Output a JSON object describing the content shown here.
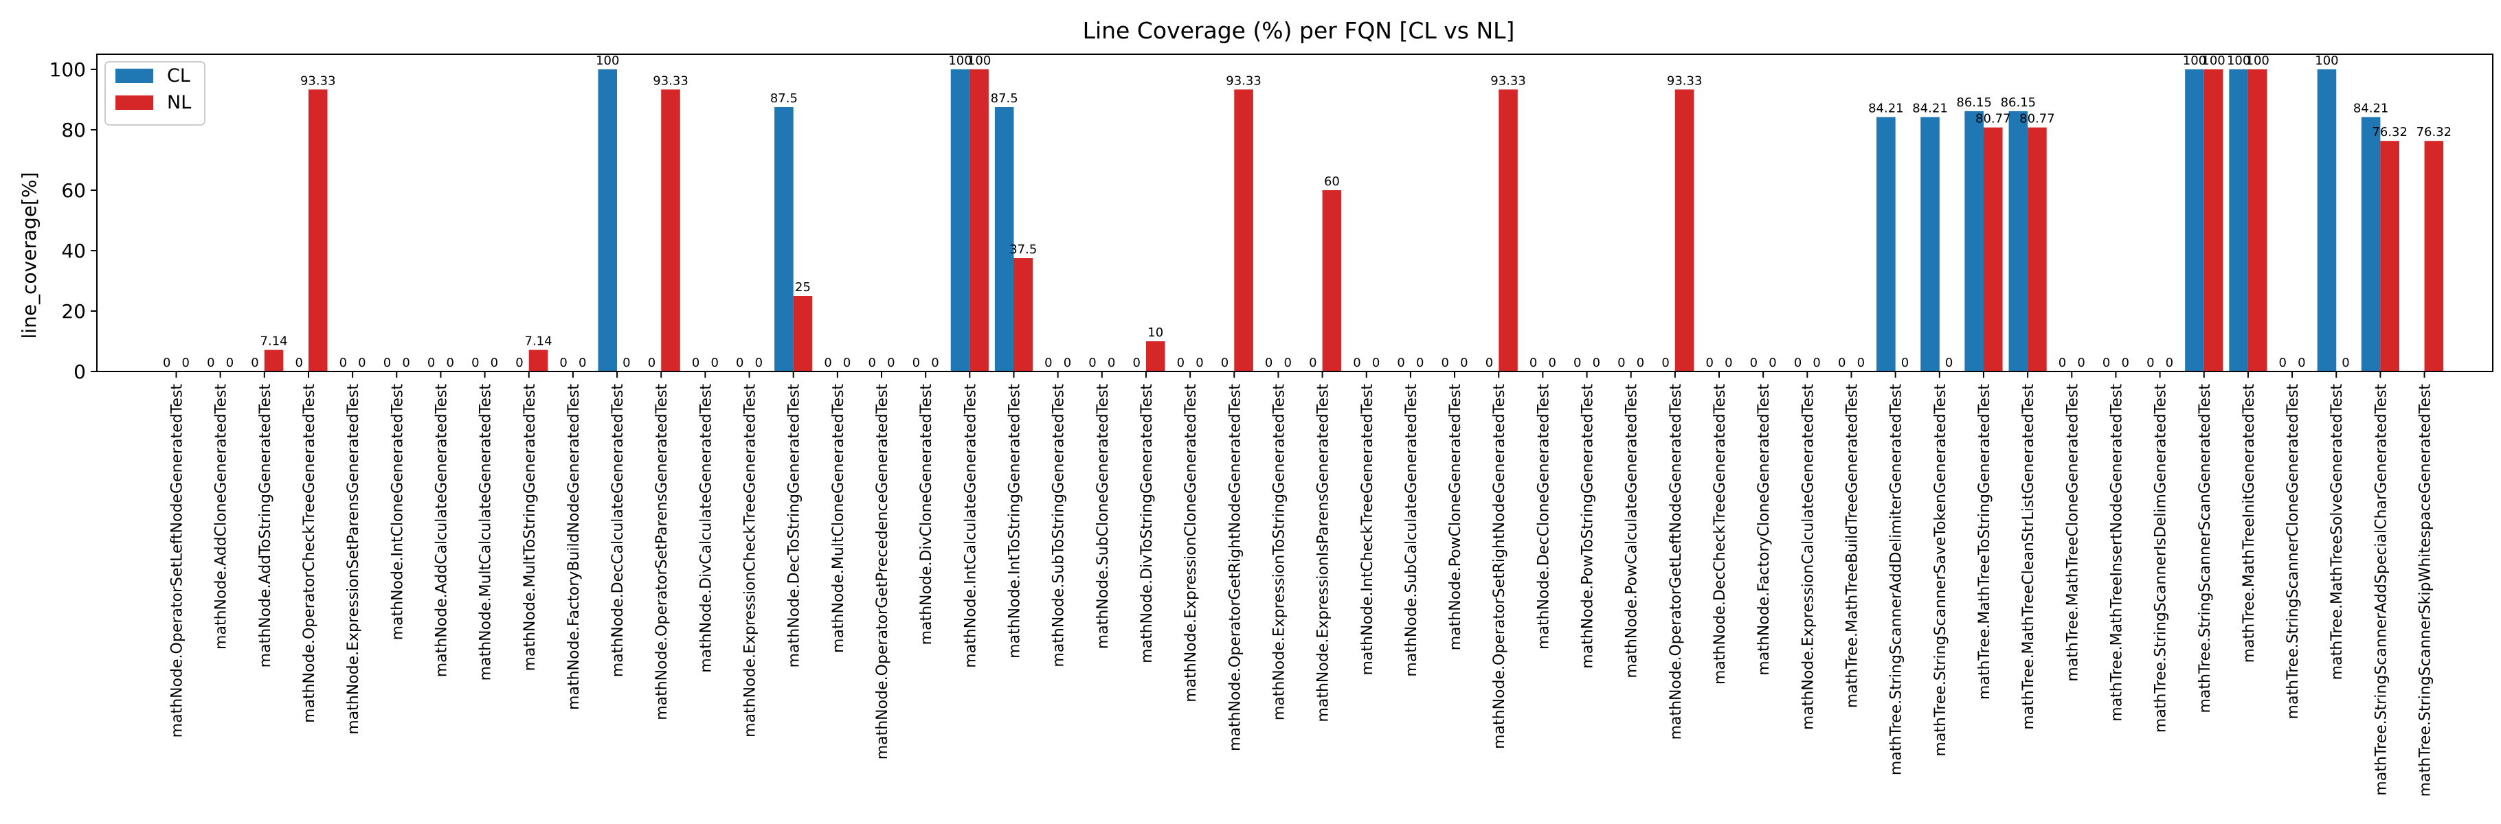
{
  "chart_data": {
    "type": "bar",
    "title": "Line Coverage (%) per FQN [CL vs NL]",
    "xlabel": "",
    "ylabel": "line_coverage[%]",
    "ylim": [
      0,
      105
    ],
    "yticks": [
      0,
      20,
      40,
      60,
      80,
      100
    ],
    "grid": false,
    "legend_position": "top-left",
    "categories": [
      "mathNode.OperatorSetLeftNodeGeneratedTest",
      "mathNode.AddCloneGeneratedTest",
      "mathNode.AddToStringGeneratedTest",
      "mathNode.OperatorCheckTreeGeneratedTest",
      "mathNode.ExpressionSetParensGeneratedTest",
      "mathNode.IntCloneGeneratedTest",
      "mathNode.AddCalculateGeneratedTest",
      "mathNode.MultCalculateGeneratedTest",
      "mathNode.MultToStringGeneratedTest",
      "mathNode.FactoryBuildNodeGeneratedTest",
      "mathNode.DecCalculateGeneratedTest",
      "mathNode.OperatorSetParensGeneratedTest",
      "mathNode.DivCalculateGeneratedTest",
      "mathNode.ExpressionCheckTreeGeneratedTest",
      "mathNode.DecToStringGeneratedTest",
      "mathNode.MultCloneGeneratedTest",
      "mathNode.OperatorGetPrecedenceGeneratedTest",
      "mathNode.DivCloneGeneratedTest",
      "mathNode.IntCalculateGeneratedTest",
      "mathNode.IntToStringGeneratedTest",
      "mathNode.SubToStringGeneratedTest",
      "mathNode.SubCloneGeneratedTest",
      "mathNode.DivToStringGeneratedTest",
      "mathNode.ExpressionCloneGeneratedTest",
      "mathNode.OperatorGetRightNodeGeneratedTest",
      "mathNode.ExpressionToStringGeneratedTest",
      "mathNode.ExpressionIsParensGeneratedTest",
      "mathNode.IntCheckTreeGeneratedTest",
      "mathNode.SubCalculateGeneratedTest",
      "mathNode.PowCloneGeneratedTest",
      "mathNode.OperatorSetRightNodeGeneratedTest",
      "mathNode.DecCloneGeneratedTest",
      "mathNode.PowToStringGeneratedTest",
      "mathNode.PowCalculateGeneratedTest",
      "mathNode.OperatorGetLeftNodeGeneratedTest",
      "mathNode.DecCheckTreeGeneratedTest",
      "mathNode.FactoryCloneGeneratedTest",
      "mathNode.ExpressionCalculateGeneratedTest",
      "mathTree.MathTreeBuildTreeGeneratedTest",
      "mathTree.StringScannerAddDelimiterGeneratedTest",
      "mathTree.StringScannerSaveTokenGeneratedTest",
      "mathTree.MathTreeToStringGeneratedTest",
      "mathTree.MathTreeCleanStrListGeneratedTest",
      "mathTree.MathTreeCloneGeneratedTest",
      "mathTree.MathTreeInsertNodeGeneratedTest",
      "mathTree.StringScannerIsDelimGeneratedTest",
      "mathTree.StringScannerScanGeneratedTest",
      "mathTree.MathTreeInitGeneratedTest",
      "mathTree.StringScannerCloneGeneratedTest",
      "mathTree.MathTreeSolveGeneratedTest",
      "mathTree.StringScannerAddSpecialCharGeneratedTest",
      "mathTree.StringScannerSkipWhitespaceGeneratedTest"
    ],
    "series": [
      {
        "name": "CL",
        "color": "#1f77b4",
        "values": [
          0,
          0,
          0,
          0,
          0,
          0,
          0,
          0,
          0,
          0,
          100,
          0,
          0,
          0,
          87.5,
          0,
          0,
          0,
          100,
          87.5,
          0,
          0,
          0,
          0,
          0,
          0,
          0,
          0,
          0,
          0,
          0,
          0,
          0,
          0,
          0,
          0,
          0,
          0,
          0,
          84.21,
          84.21,
          86.15,
          86.15,
          0,
          0,
          0,
          100,
          100,
          0,
          100,
          84.21,
          0
        ],
        "labels": [
          "0",
          "0",
          "0",
          "0",
          "0",
          "0",
          "0",
          "0",
          "0",
          "0",
          "100",
          "0",
          "0",
          "0",
          "87.5",
          "0",
          "0",
          "0",
          "100",
          "87.5",
          "0",
          "0",
          "0",
          "0",
          "0",
          "0",
          "0",
          "0",
          "0",
          "0",
          "0",
          "0",
          "0",
          "0",
          "0",
          "0",
          "0",
          "0",
          "0",
          "84.21",
          "84.21",
          "86.15",
          "86.15",
          "0",
          "0",
          "0",
          "100",
          "100",
          "0",
          "100",
          "84.21",
          ""
        ]
      },
      {
        "name": "NL",
        "color": "#d62728",
        "values": [
          0,
          0,
          7.14,
          93.33,
          0,
          0,
          0,
          0,
          7.14,
          0,
          0,
          93.33,
          0,
          0,
          25,
          0,
          0,
          0,
          100,
          37.5,
          0,
          0,
          10,
          0,
          93.33,
          0,
          60,
          0,
          0,
          0,
          93.33,
          0,
          0,
          0,
          93.33,
          0,
          0,
          0,
          0,
          0,
          0,
          80.77,
          80.77,
          0,
          0,
          0,
          100,
          100,
          0,
          0,
          76.32,
          76.32
        ],
        "labels": [
          "0",
          "0",
          "7.14",
          "93.33",
          "0",
          "0",
          "0",
          "0",
          "7.14",
          "0",
          "0",
          "93.33",
          "0",
          "0",
          "25",
          "0",
          "0",
          "0",
          "100",
          "37.5",
          "0",
          "0",
          "10",
          "0",
          "93.33",
          "0",
          "60",
          "0",
          "0",
          "0",
          "93.33",
          "0",
          "0",
          "0",
          "93.33",
          "0",
          "0",
          "0",
          "0",
          "0",
          "0",
          "80.77",
          "80.77",
          "0",
          "0",
          "0",
          "100",
          "100",
          "0",
          "0",
          "76.32",
          "76.32"
        ]
      }
    ]
  }
}
